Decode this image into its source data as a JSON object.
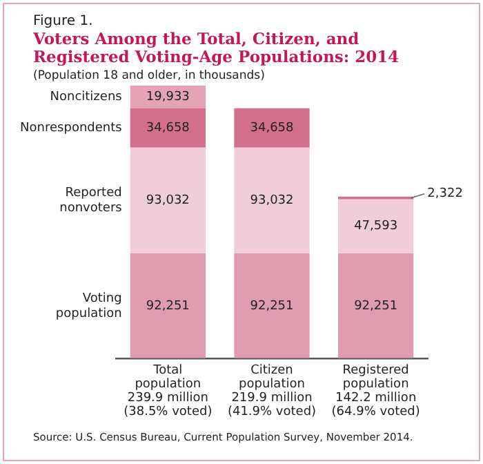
{
  "chart_data": {
    "type": "bar",
    "stacked": true,
    "title": "Voters Among the Total, Citizen, and Registered Voting-Age Populations: 2014",
    "subtitle": "(Population 18 and older, in thousands)",
    "annotations": [
      "Figure 1.",
      "Source: U.S. Census Bureau, Current Population Survey, November 2014."
    ],
    "categories": [
      "Total\npopulation\n239.9 million\n(38.5% voted)",
      "Citizen\npopulation\n219.9 million\n(41.9% voted)",
      "Registered\npopulation\n142.2 million\n(64.9% voted)"
    ],
    "series": [
      {
        "name": "Voting population",
        "color": "#df9bb0",
        "values": [
          92251,
          92251,
          92251
        ],
        "value_labels": [
          "92,251",
          "92,251",
          "92,251"
        ]
      },
      {
        "name": "Reported nonvoters",
        "color": "#f0cdd8",
        "values": [
          93032,
          93032,
          47593
        ],
        "value_labels": [
          "93,032",
          "93,032",
          "47,593"
        ]
      },
      {
        "name": "Nonrespondents",
        "color": "#d26f8c",
        "values": [
          34658,
          34658,
          2322
        ],
        "value_labels": [
          "34,658",
          "34,658",
          "2,322"
        ]
      },
      {
        "name": "Noncitizens",
        "color": "#e4a3b7",
        "values": [
          19933,
          null,
          null
        ],
        "value_labels": [
          "19,933",
          null,
          null
        ]
      }
    ],
    "legend": false,
    "grid": false
  }
}
